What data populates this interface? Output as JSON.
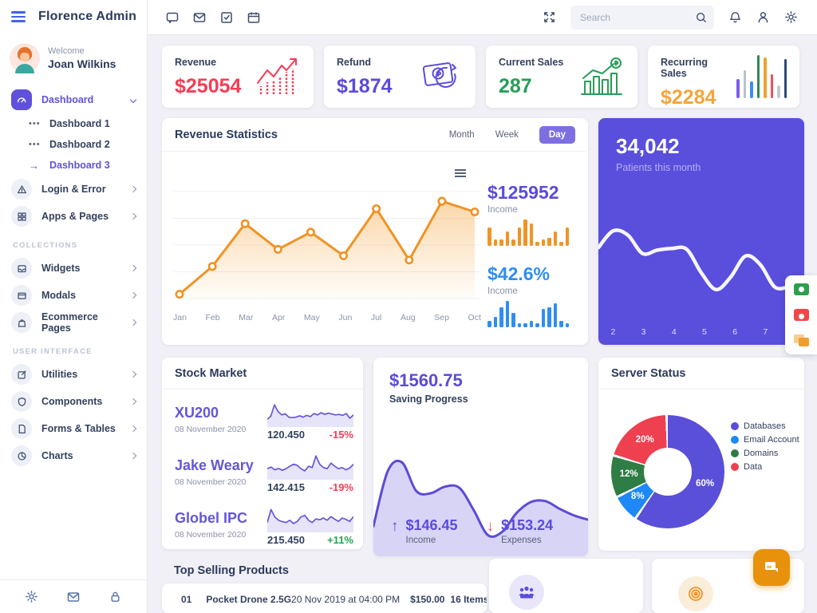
{
  "brand": "Florence Admin",
  "topbar": {
    "search_placeholder": "Search"
  },
  "sidebar": {
    "welcome": "Welcome",
    "user_name": "Joan Wilkins",
    "sections": {
      "collections": "COLLECTIONS",
      "user_interface": "USER INTERFACE"
    },
    "items": [
      {
        "label": "Dashboard"
      },
      {
        "label": "Dashboard 1"
      },
      {
        "label": "Dashboard 2"
      },
      {
        "label": "Dashboard 3"
      },
      {
        "label": "Login & Error"
      },
      {
        "label": "Apps & Pages"
      },
      {
        "label": "Widgets"
      },
      {
        "label": "Modals"
      },
      {
        "label": "Ecommerce Pages"
      },
      {
        "label": "Utilities"
      },
      {
        "label": "Components"
      },
      {
        "label": "Forms & Tables"
      },
      {
        "label": "Charts"
      }
    ]
  },
  "stats": [
    {
      "label": "Revenue",
      "value": "$25054",
      "color": "#f43d55"
    },
    {
      "label": "Refund",
      "value": "$1874",
      "color": "#5a4bdb"
    },
    {
      "label": "Current Sales",
      "value": "287",
      "color": "#279d58"
    },
    {
      "label": "Recurring Sales",
      "value": "$2284",
      "color": "#f5a43a"
    }
  ],
  "recurring_bars": [
    {
      "value": 45,
      "color": "#7b5cf0"
    },
    {
      "value": 65,
      "color": "#b9c2cf"
    },
    {
      "value": 38,
      "color": "#3b8ef0"
    },
    {
      "value": 100,
      "color": "#2e8b57"
    },
    {
      "value": 95,
      "color": "#f0a12f"
    },
    {
      "value": 55,
      "color": "#f0505f"
    },
    {
      "value": 30,
      "color": "#c3c9d4"
    },
    {
      "value": 90,
      "color": "#2c4a7c"
    }
  ],
  "revenue_stats": {
    "title": "Revenue Statistics",
    "tabs": [
      {
        "label": "Month"
      },
      {
        "label": "Week"
      },
      {
        "label": "Day"
      }
    ],
    "active_tab": "Day",
    "income_total": {
      "value": "$125952",
      "label": "Income"
    },
    "income_percent": {
      "value": "$42.6%",
      "label": "Income"
    },
    "chart_data": {
      "type": "line",
      "x": [
        "Jan",
        "Feb",
        "Mar",
        "Apr",
        "May",
        "Jun",
        "Jul",
        "Aug",
        "Sep",
        "Oct"
      ],
      "values": [
        4,
        30,
        70,
        46,
        62,
        40,
        84,
        36,
        91,
        81
      ],
      "line_color": "#f09325"
    },
    "mini_bars_orange": {
      "color": "#f09425",
      "values": [
        9,
        3,
        3,
        7,
        3,
        9,
        13,
        11,
        2,
        3,
        4,
        7,
        2,
        9
      ]
    },
    "mini_bars_blue": {
      "color": "#2f8ef2",
      "values": [
        3,
        5,
        10,
        13,
        7,
        2,
        2,
        3,
        2,
        9,
        10,
        12,
        3,
        2
      ]
    }
  },
  "patients": {
    "value": "34,042",
    "label": "Patients this month",
    "chart_data": {
      "type": "line",
      "x_labels": [
        "2",
        "3",
        "4",
        "5",
        "6",
        "7"
      ],
      "values": [
        55,
        75,
        70,
        48,
        52,
        54,
        53,
        25,
        5,
        20,
        45,
        35,
        8,
        8,
        8
      ],
      "line_color": "#ffffff",
      "background": "#5a4edd"
    }
  },
  "stock_market": {
    "title": "Stock Market",
    "rows": [
      {
        "name": "XU200",
        "date": "08 November 2020",
        "value": "120.450",
        "change": "-15%",
        "change_color": "#f43d55",
        "spark": [
          20,
          35,
          85,
          55,
          40,
          45,
          30,
          28,
          30,
          36,
          30,
          38,
          32,
          46,
          40,
          50,
          42,
          48,
          44,
          40,
          42,
          38,
          46,
          25,
          40
        ]
      },
      {
        "name": "Jake Weary",
        "date": "08 November 2020",
        "value": "142.415",
        "change": "-19%",
        "change_color": "#f43d55",
        "spark": [
          35,
          42,
          30,
          36,
          28,
          35,
          46,
          55,
          50,
          35,
          25,
          46,
          40,
          92,
          55,
          40,
          35,
          60,
          46,
          35,
          40,
          30,
          38,
          55
        ]
      },
      {
        "name": "Globel IPC",
        "date": "08 November 2020",
        "value": "215.450",
        "change": "+11%",
        "change_color": "#21a353",
        "spark": [
          30,
          88,
          55,
          40,
          34,
          30,
          40,
          25,
          35,
          55,
          62,
          40,
          30,
          46,
          42,
          50,
          40,
          56,
          45,
          35,
          50,
          44,
          35,
          56
        ]
      }
    ]
  },
  "saving": {
    "value": "$1560.75",
    "label": "Saving Progress",
    "income": {
      "value": "$146.45",
      "label": "Income"
    },
    "expenses": {
      "value": "$153.24",
      "label": "Expenses"
    },
    "chart_data": {
      "type": "area",
      "values": [
        20,
        70,
        78,
        52,
        50,
        56,
        55,
        35,
        12,
        15,
        32,
        42,
        43,
        36,
        30,
        26
      ],
      "line_color": "#5b4bd6"
    }
  },
  "server_status": {
    "title": "Server Status",
    "chart_data": {
      "type": "pie",
      "slices": [
        {
          "label": "Databases",
          "value": 60,
          "color": "#5a4fd8"
        },
        {
          "label": "Email Account",
          "value": 8,
          "color": "#1e88f7"
        },
        {
          "label": "Domains",
          "value": 12,
          "color": "#2e7d44"
        },
        {
          "label": "Data",
          "value": 20,
          "color": "#ef4050"
        }
      ],
      "legend_position": "right"
    }
  },
  "top_selling": {
    "title": "Top Selling Products",
    "row": {
      "index": "01",
      "product": "Pocket Drone 2.5G",
      "date": "20 Nov 2019 at 04:00 PM",
      "price": "$150.00",
      "qty": "16 Items"
    }
  }
}
